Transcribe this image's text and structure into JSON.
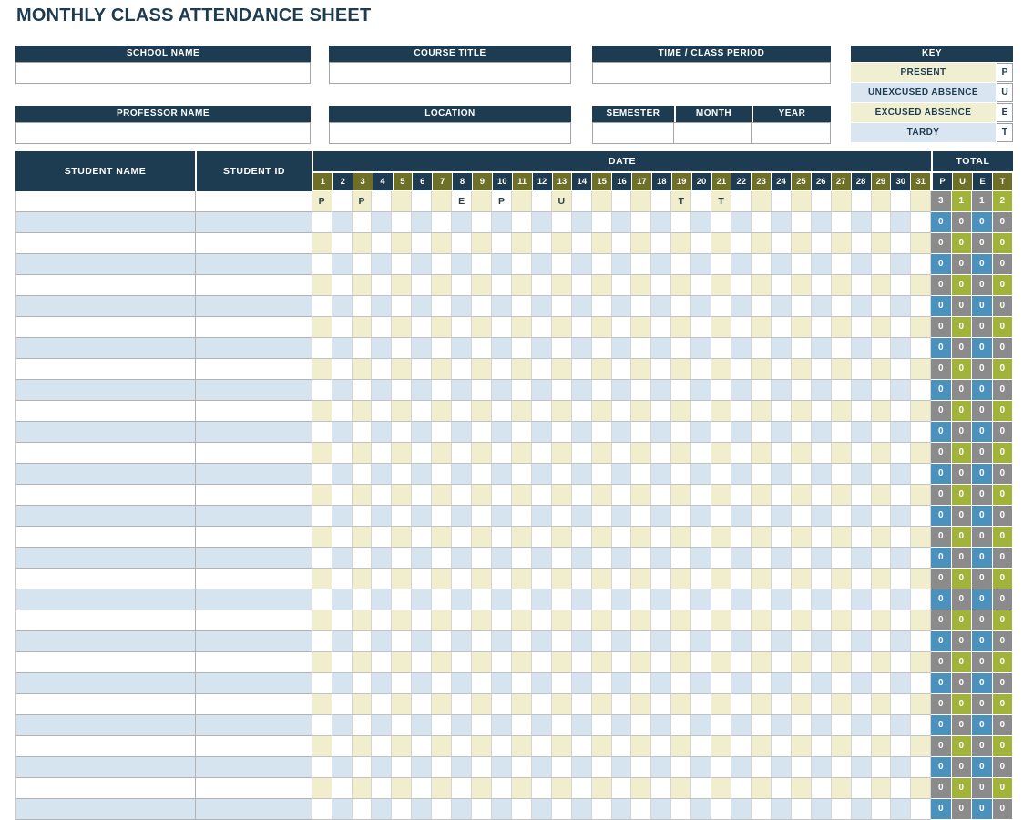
{
  "title": "MONTHLY CLASS ATTENDANCE SHEET",
  "form": {
    "school_name": {
      "label": "SCHOOL NAME",
      "value": ""
    },
    "course_title": {
      "label": "COURSE TITLE",
      "value": ""
    },
    "time_class_period": {
      "label": "TIME / CLASS PERIOD",
      "value": ""
    },
    "professor_name": {
      "label": "PROFESSOR NAME",
      "value": ""
    },
    "location": {
      "label": "LOCATION",
      "value": ""
    },
    "semester": {
      "label": "SEMESTER",
      "value": ""
    },
    "month": {
      "label": "MONTH",
      "value": ""
    },
    "year": {
      "label": "YEAR",
      "value": ""
    }
  },
  "key": {
    "title": "KEY",
    "entries": [
      {
        "label": "PRESENT",
        "code": "P"
      },
      {
        "label": "UNEXCUSED ABSENCE",
        "code": "U"
      },
      {
        "label": "EXCUSED ABSENCE",
        "code": "E"
      },
      {
        "label": "TARDY",
        "code": "T"
      }
    ]
  },
  "attendance_table": {
    "headers": {
      "student_name": "STUDENT NAME",
      "student_id": "STUDENT ID",
      "date": "DATE",
      "total": "TOTAL"
    },
    "date_columns": [
      1,
      2,
      3,
      4,
      5,
      6,
      7,
      8,
      9,
      10,
      11,
      12,
      13,
      14,
      15,
      16,
      17,
      18,
      19,
      20,
      21,
      22,
      23,
      24,
      25,
      26,
      27,
      28,
      29,
      30,
      31
    ],
    "total_columns": [
      "P",
      "U",
      "E",
      "T"
    ],
    "rows": [
      {
        "student_name": "",
        "student_id": "",
        "marks": {
          "1": "P",
          "3": "P",
          "8": "E",
          "10": "P",
          "13": "U",
          "19": "T",
          "21": "T"
        },
        "totals": [
          "3",
          "1",
          "1",
          "2"
        ]
      }
    ],
    "empty_row": {
      "student_name": "",
      "student_id": "",
      "marks": {},
      "totals": [
        "0",
        "0",
        "0",
        "0"
      ]
    },
    "empty_row_count": 29
  },
  "colors": {
    "navy": "#1d3c52",
    "olive": "#6f7028",
    "cream_cell": "#f0eecd",
    "row_blue": "#d6e4ef",
    "key_blue": "#d9e6f1",
    "key_cream": "#f1efd2",
    "total_gray": "#8b8b8b",
    "total_green": "#a2b33c",
    "total_blue": "#4b91bd"
  }
}
